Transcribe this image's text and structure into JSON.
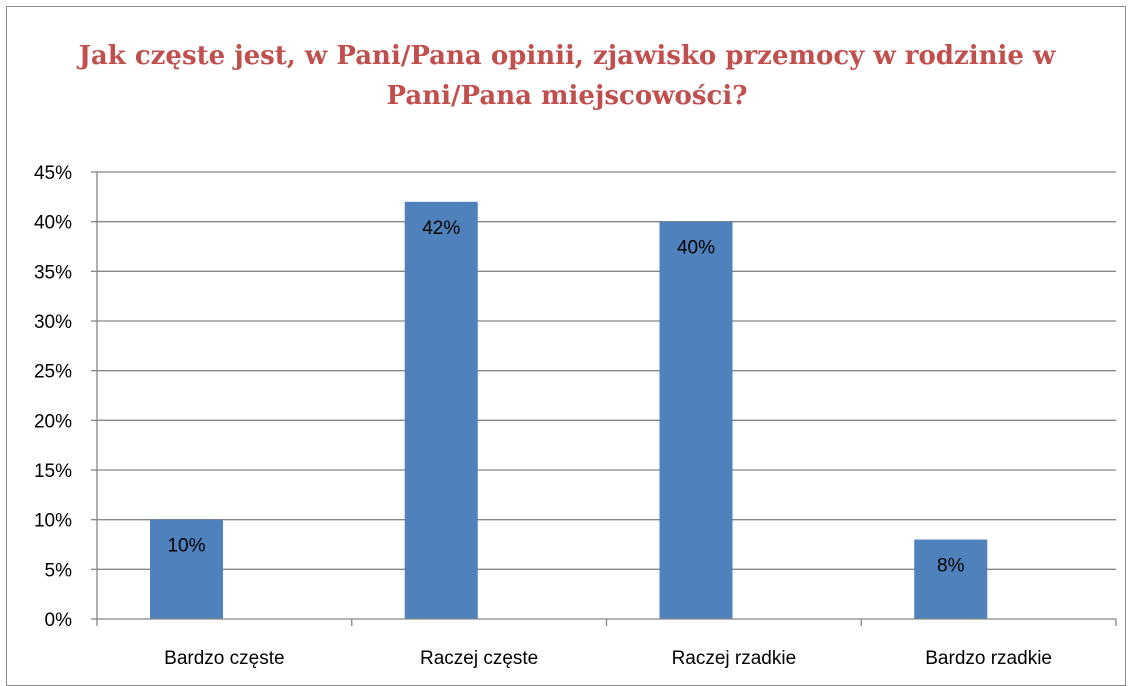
{
  "chart_data": {
    "type": "bar",
    "title": "Jak częste jest, w Pani/Pana opinii, zjawisko przemocy w rodzinie w Pani/Pana miejscowości?",
    "categories": [
      "Bardzo częste",
      "Raczej częste",
      "Raczej rzadkie",
      "Bardzo rzadkie"
    ],
    "values": [
      10,
      42,
      40,
      8
    ],
    "data_labels": [
      "10%",
      "42%",
      "40%",
      "8%"
    ],
    "ylim": [
      0,
      45
    ],
    "yticks": [
      0,
      5,
      10,
      15,
      20,
      25,
      30,
      35,
      40,
      45
    ],
    "ytick_labels": [
      "0%",
      "5%",
      "10%",
      "15%",
      "20%",
      "25%",
      "30%",
      "35%",
      "40%",
      "45%"
    ],
    "xlabel": "",
    "ylabel": "",
    "grid": true,
    "legend": "none",
    "colors": {
      "bar": "#4f81bd",
      "title": "#c0504d",
      "grid": "#868686",
      "axis": "#868686"
    }
  }
}
